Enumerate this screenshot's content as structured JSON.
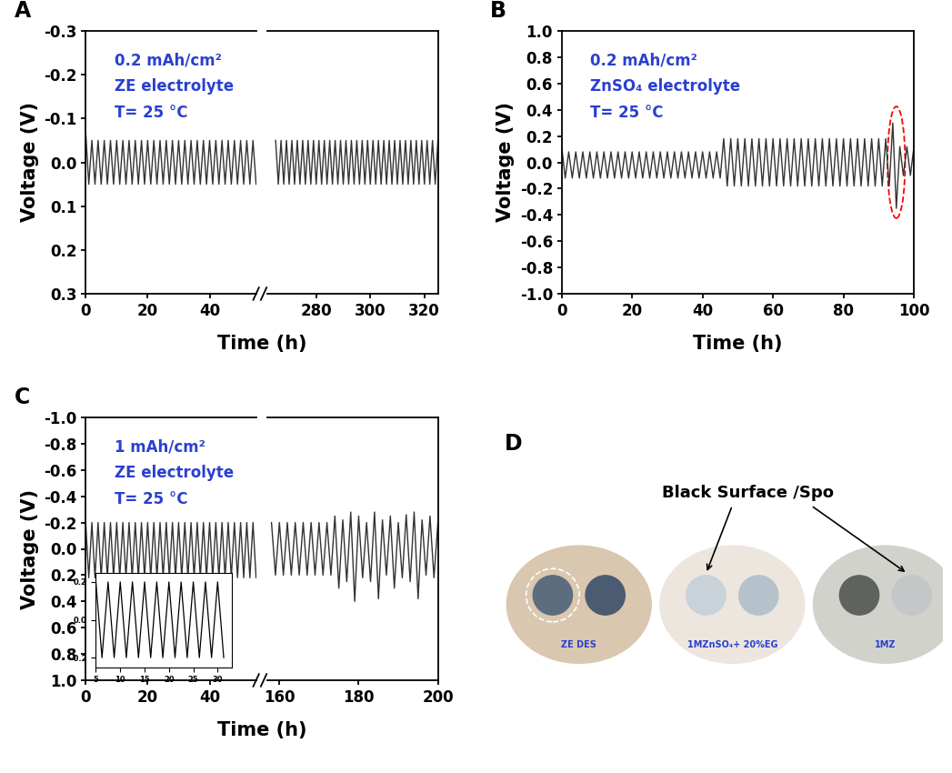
{
  "chart_data": [
    {
      "type": "line",
      "title": "A",
      "xlabel": "Time (h)",
      "ylabel": "Voltage (V)",
      "color": "#333333",
      "annotations": [
        "0.2 mAh/cm²",
        "ZE electrolyte",
        "T= 25 °C"
      ],
      "ylim": [
        0.3,
        -0.3
      ],
      "yticks": [
        -0.3,
        -0.2,
        -0.1,
        0.0,
        0.1,
        0.2,
        0.3
      ],
      "segments": [
        {
          "xlim": [
            0,
            55
          ],
          "xticks": [
            0,
            20,
            40
          ],
          "x": [
            0,
            1,
            2,
            3,
            4,
            5,
            6,
            7,
            8,
            9,
            10,
            11,
            12,
            13,
            14,
            15,
            16,
            17,
            18,
            19,
            20,
            21,
            22,
            23,
            24,
            25,
            26,
            27,
            28,
            29,
            30,
            31,
            32,
            33,
            34,
            35,
            36,
            37,
            38,
            39,
            40,
            41,
            42,
            43,
            44,
            45,
            46,
            47,
            48,
            49,
            50,
            51,
            52,
            53,
            54,
            55
          ],
          "values": [
            -0.07,
            0.05,
            -0.05,
            0.05,
            -0.05,
            0.05,
            -0.05,
            0.05,
            -0.05,
            0.05,
            -0.05,
            0.05,
            -0.05,
            0.05,
            -0.05,
            0.05,
            -0.05,
            0.05,
            -0.05,
            0.05,
            -0.05,
            0.05,
            -0.05,
            0.05,
            -0.05,
            0.05,
            -0.05,
            0.05,
            -0.05,
            0.05,
            -0.05,
            0.05,
            -0.05,
            0.05,
            -0.05,
            0.05,
            -0.05,
            0.05,
            -0.05,
            0.05,
            -0.05,
            0.05,
            -0.05,
            0.05,
            -0.05,
            0.05,
            -0.05,
            0.05,
            -0.05,
            0.05,
            -0.05,
            0.05,
            -0.05,
            0.05,
            -0.05,
            0.05
          ]
        },
        {
          "xlim": [
            262,
            325
          ],
          "xticks": [
            280,
            300,
            320
          ],
          "x": [
            265,
            266,
            267,
            268,
            269,
            270,
            271,
            272,
            273,
            274,
            275,
            276,
            277,
            278,
            279,
            280,
            281,
            282,
            283,
            284,
            285,
            286,
            287,
            288,
            289,
            290,
            291,
            292,
            293,
            294,
            295,
            296,
            297,
            298,
            299,
            300,
            301,
            302,
            303,
            304,
            305,
            306,
            307,
            308,
            309,
            310,
            311,
            312,
            313,
            314,
            315,
            316,
            317,
            318,
            319,
            320,
            321,
            322,
            323,
            324,
            325
          ],
          "values": [
            -0.05,
            0.05,
            -0.05,
            0.05,
            -0.05,
            0.05,
            -0.05,
            0.05,
            -0.05,
            0.05,
            -0.05,
            0.05,
            -0.05,
            0.05,
            -0.05,
            0.05,
            -0.05,
            0.05,
            -0.05,
            0.05,
            -0.05,
            0.05,
            -0.05,
            0.05,
            -0.05,
            0.05,
            -0.05,
            0.05,
            -0.05,
            0.05,
            -0.05,
            0.05,
            -0.05,
            0.05,
            -0.05,
            0.05,
            -0.05,
            0.05,
            -0.05,
            0.05,
            -0.05,
            0.05,
            -0.05,
            0.05,
            -0.05,
            0.05,
            -0.05,
            0.05,
            -0.05,
            0.05,
            -0.05,
            0.05,
            -0.05,
            0.05,
            -0.05,
            0.05,
            -0.05,
            0.05,
            -0.05,
            0.05,
            -0.05
          ]
        }
      ]
    },
    {
      "type": "line",
      "title": "B",
      "xlabel": "Time (h)",
      "ylabel": "Voltage (V)",
      "color": "#333333",
      "annotations": [
        "0.2 mAh/cm²",
        "ZnSO₄ electrolyte",
        "T= 25 °C"
      ],
      "ylim": [
        -1.0,
        1.0
      ],
      "yticks": [
        -1.0,
        -0.8,
        -0.6,
        -0.4,
        -0.2,
        0.0,
        0.2,
        0.4,
        0.6,
        0.8,
        1.0
      ],
      "segments": [
        {
          "xlim": [
            0,
            100
          ],
          "xticks": [
            0,
            20,
            40,
            60,
            80,
            100
          ],
          "x": [
            0,
            1,
            2,
            3,
            4,
            5,
            6,
            7,
            8,
            9,
            10,
            11,
            12,
            13,
            14,
            15,
            16,
            17,
            18,
            19,
            20,
            21,
            22,
            23,
            24,
            25,
            26,
            27,
            28,
            29,
            30,
            31,
            32,
            33,
            34,
            35,
            36,
            37,
            38,
            39,
            40,
            41,
            42,
            43,
            44,
            45,
            46,
            47,
            48,
            49,
            50,
            51,
            52,
            53,
            54,
            55,
            56,
            57,
            58,
            59,
            60,
            61,
            62,
            63,
            64,
            65,
            66,
            67,
            68,
            69,
            70,
            71,
            72,
            73,
            74,
            75,
            76,
            77,
            78,
            79,
            80,
            81,
            82,
            83,
            84,
            85,
            86,
            87,
            88,
            89,
            90,
            91,
            92,
            93,
            94,
            95,
            96,
            97,
            98,
            99,
            100
          ],
          "values": [
            0.12,
            -0.12,
            0.08,
            -0.12,
            0.08,
            -0.12,
            0.08,
            -0.12,
            0.08,
            -0.12,
            0.08,
            -0.12,
            0.08,
            -0.12,
            0.08,
            -0.12,
            0.08,
            -0.12,
            0.08,
            -0.12,
            0.08,
            -0.12,
            0.08,
            -0.12,
            0.08,
            -0.12,
            0.08,
            -0.12,
            0.08,
            -0.12,
            0.08,
            -0.12,
            0.08,
            -0.12,
            0.08,
            -0.12,
            0.08,
            -0.12,
            0.08,
            -0.12,
            0.08,
            -0.12,
            0.08,
            -0.12,
            0.08,
            -0.12,
            0.18,
            -0.18,
            0.18,
            -0.18,
            0.18,
            -0.18,
            0.18,
            -0.18,
            0.18,
            -0.18,
            0.18,
            -0.18,
            0.18,
            -0.18,
            0.18,
            -0.18,
            0.18,
            -0.18,
            0.18,
            -0.18,
            0.18,
            -0.18,
            0.18,
            -0.18,
            0.18,
            -0.18,
            0.18,
            -0.18,
            0.18,
            -0.18,
            0.18,
            -0.18,
            0.18,
            -0.18,
            0.18,
            -0.18,
            0.18,
            -0.18,
            0.18,
            -0.18,
            0.18,
            -0.18,
            0.18,
            -0.18,
            0.18,
            -0.18,
            0.18,
            -0.18,
            0.3,
            -0.35,
            0.12,
            -0.1,
            0.12,
            -0.1,
            0.12
          ]
        }
      ]
    },
    {
      "type": "line",
      "title": "C",
      "xlabel": "Time (h)",
      "ylabel": "Voltage (V)",
      "color": "#333333",
      "annotations": [
        "1 mAh/cm²",
        "ZE electrolyte",
        "T= 25 °C"
      ],
      "ylim": [
        1.0,
        -1.0
      ],
      "yticks": [
        -1.0,
        -0.8,
        -0.6,
        -0.4,
        -0.2,
        0.0,
        0.2,
        0.4,
        0.6,
        0.8,
        1.0
      ],
      "segments": [
        {
          "xlim": [
            0,
            55
          ],
          "xticks": [
            0,
            20,
            40
          ],
          "x": [
            0,
            1,
            2,
            3,
            4,
            5,
            6,
            7,
            8,
            9,
            10,
            11,
            12,
            13,
            14,
            15,
            16,
            17,
            18,
            19,
            20,
            21,
            22,
            23,
            24,
            25,
            26,
            27,
            28,
            29,
            30,
            31,
            32,
            33,
            34,
            35,
            36,
            37,
            38,
            39,
            40,
            41,
            42,
            43,
            44,
            45,
            46,
            47,
            48,
            49,
            50,
            51,
            52,
            53,
            54,
            55
          ],
          "values": [
            -0.2,
            0.22,
            -0.2,
            0.22,
            -0.2,
            0.22,
            -0.2,
            0.22,
            -0.2,
            0.22,
            -0.2,
            0.22,
            -0.2,
            0.22,
            -0.2,
            0.22,
            -0.2,
            0.22,
            -0.2,
            0.22,
            -0.2,
            0.22,
            -0.2,
            0.22,
            -0.2,
            0.22,
            -0.2,
            0.22,
            -0.2,
            0.22,
            -0.2,
            0.22,
            -0.2,
            0.22,
            -0.2,
            0.22,
            -0.2,
            0.22,
            -0.2,
            0.22,
            -0.2,
            0.22,
            -0.2,
            0.22,
            -0.2,
            0.22,
            -0.2,
            0.22,
            -0.2,
            0.22,
            -0.2,
            0.22,
            -0.2,
            0.22,
            -0.2,
            0.22
          ]
        },
        {
          "xlim": [
            157,
            200
          ],
          "xticks": [
            160,
            180,
            200
          ],
          "x": [
            158,
            159,
            160,
            161,
            162,
            163,
            164,
            165,
            166,
            167,
            168,
            169,
            170,
            171,
            172,
            173,
            174,
            175,
            176,
            177,
            178,
            179,
            180,
            181,
            182,
            183,
            184,
            185,
            186,
            187,
            188,
            189,
            190,
            191,
            192,
            193,
            194,
            195,
            196,
            197,
            198,
            199,
            200
          ],
          "values": [
            -0.2,
            0.2,
            -0.2,
            0.2,
            -0.2,
            0.2,
            -0.2,
            0.2,
            -0.2,
            0.2,
            -0.2,
            0.2,
            -0.2,
            0.2,
            -0.2,
            0.2,
            -0.25,
            0.3,
            -0.22,
            0.25,
            -0.28,
            0.4,
            -0.25,
            0.22,
            -0.2,
            0.25,
            -0.28,
            0.38,
            -0.22,
            0.2,
            -0.25,
            0.3,
            -0.2,
            0.22,
            -0.26,
            0.25,
            -0.28,
            0.38,
            -0.22,
            0.2,
            -0.25,
            0.22,
            -0.2
          ]
        }
      ],
      "inset": {
        "xlim": [
          5,
          33
        ],
        "xticks": [
          5,
          10,
          15,
          20,
          25,
          30
        ],
        "ylim": [
          -0.25,
          0.25
        ],
        "yticks": [
          -0.2,
          0.0,
          0.2
        ],
        "x": [
          5,
          6.25,
          7.5,
          8.75,
          10,
          11.25,
          12.5,
          13.75,
          15,
          16.25,
          17.5,
          18.75,
          20,
          21.25,
          22.5,
          23.75,
          25,
          26.25,
          27.5,
          28.75,
          30,
          31.25
        ],
        "values": [
          0.2,
          -0.2,
          0.2,
          -0.2,
          0.2,
          -0.2,
          0.2,
          -0.2,
          0.2,
          -0.2,
          0.2,
          -0.2,
          0.2,
          -0.2,
          0.2,
          -0.2,
          0.2,
          -0.2,
          0.2,
          -0.2,
          0.2,
          -0.2
        ]
      }
    }
  ],
  "photo": {
    "title": "D",
    "callout": "Black Surface /Spo",
    "samples": [
      "ZE DES",
      "1MZnSO₄+ 20%EG",
      "1MZ"
    ]
  }
}
